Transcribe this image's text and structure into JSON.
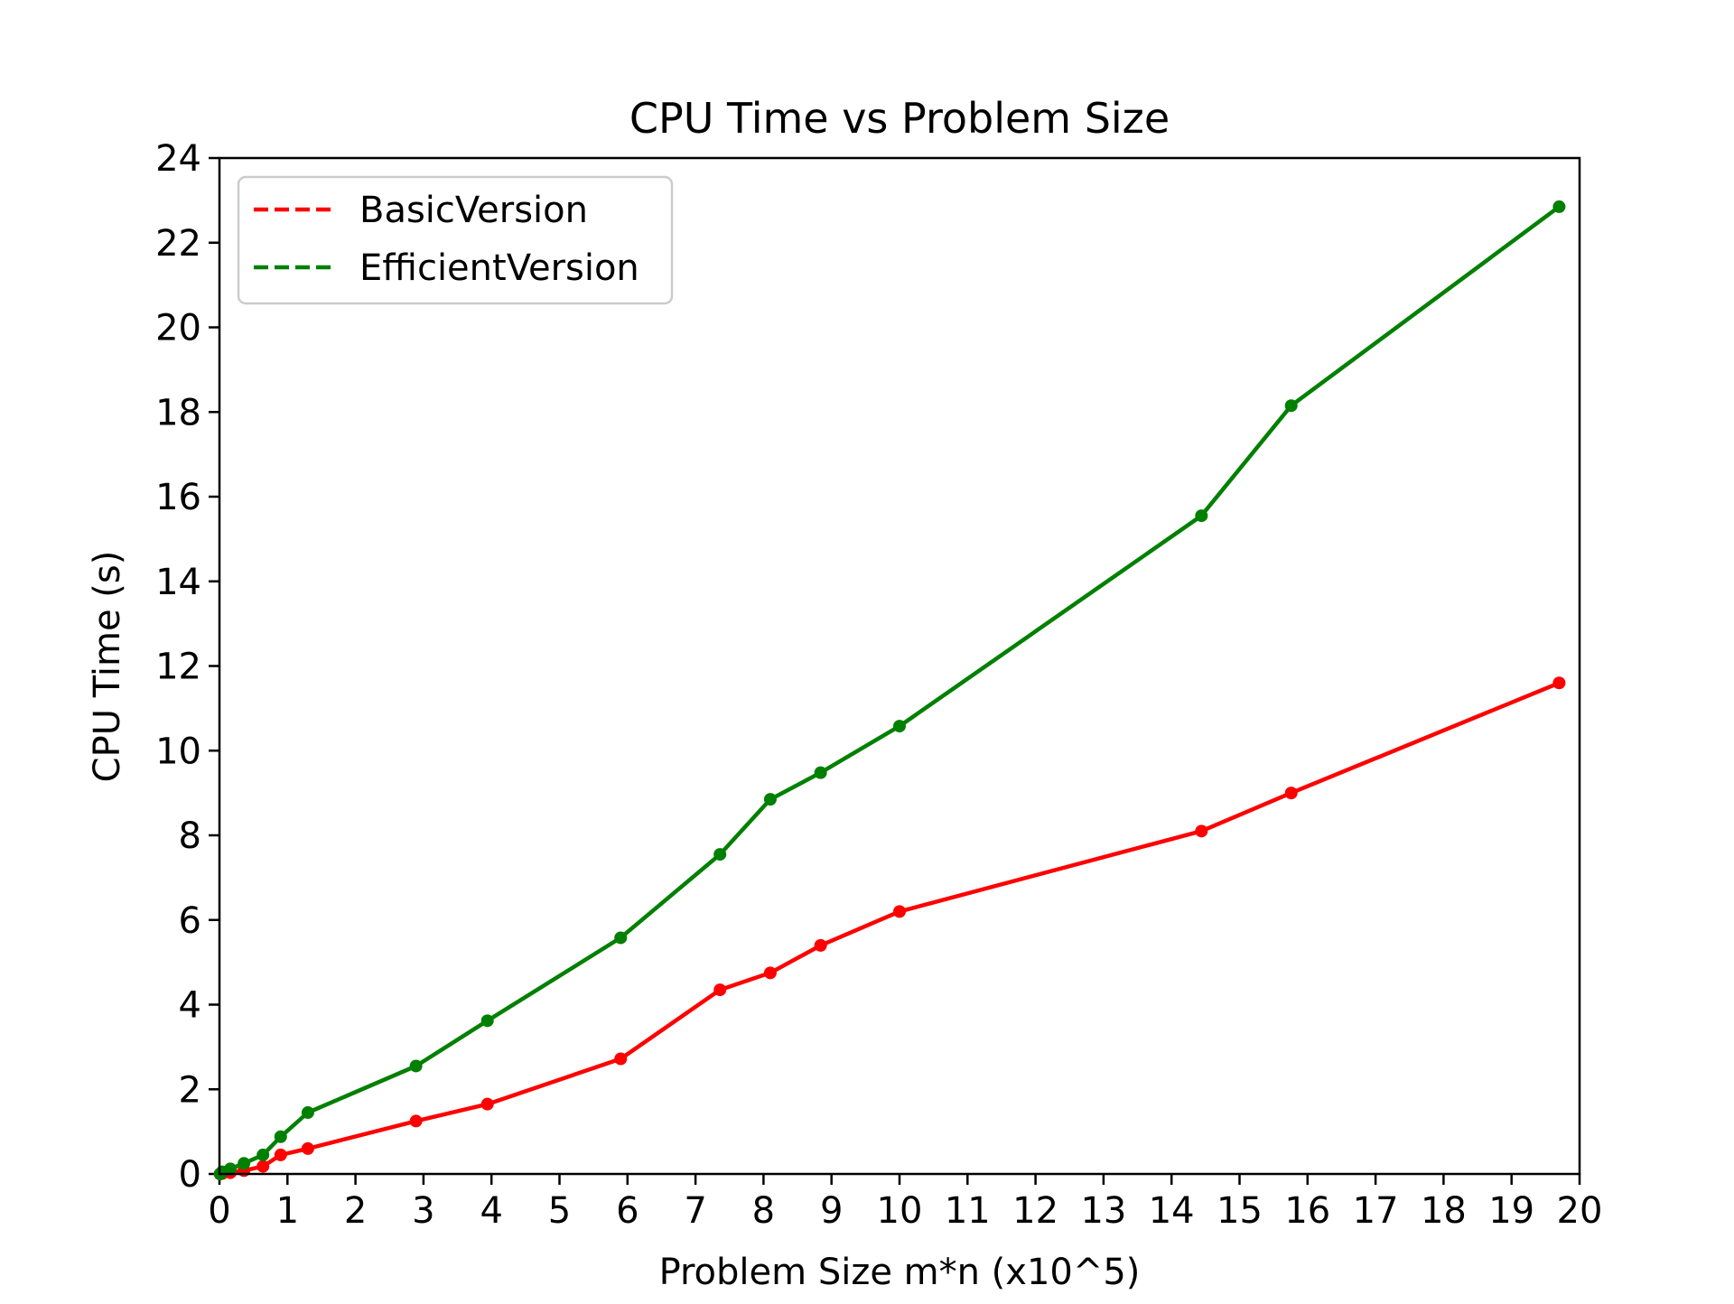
{
  "chart_data": {
    "type": "line",
    "title": "CPU Time vs Problem Size",
    "xlabel": "Problem Size m*n (x10^5)",
    "ylabel": "CPU Time (s)",
    "xlim": [
      0,
      20
    ],
    "ylim": [
      0,
      24
    ],
    "xticks": [
      "0",
      "1",
      "2",
      "3",
      "4",
      "5",
      "6",
      "7",
      "8",
      "9",
      "10",
      "11",
      "12",
      "13",
      "14",
      "15",
      "16",
      "17",
      "18",
      "19",
      "20"
    ],
    "yticks": [
      "0",
      "2",
      "4",
      "6",
      "8",
      "10",
      "12",
      "14",
      "16",
      "18",
      "20",
      "22",
      "24"
    ],
    "grid": false,
    "legend_position": "top-left",
    "x": [
      0.01,
      0.04,
      0.16,
      0.36,
      0.64,
      0.9,
      1.3,
      2.89,
      3.94,
      5.9,
      7.36,
      8.1,
      8.84,
      10.0,
      14.44,
      15.76,
      19.7
    ],
    "series": [
      {
        "name": "BasicVersion",
        "color": "#ff0000",
        "values": [
          0.0,
          0.01,
          0.03,
          0.08,
          0.18,
          0.45,
          0.6,
          1.25,
          1.65,
          2.72,
          4.35,
          4.75,
          5.4,
          6.2,
          8.1,
          9.0,
          11.6
        ]
      },
      {
        "name": "EfficientVersion",
        "color": "#008000",
        "values": [
          0.0,
          0.05,
          0.12,
          0.25,
          0.45,
          0.88,
          1.45,
          2.55,
          3.62,
          5.58,
          7.55,
          8.85,
          9.48,
          10.58,
          15.55,
          18.15,
          22.85
        ]
      }
    ]
  }
}
